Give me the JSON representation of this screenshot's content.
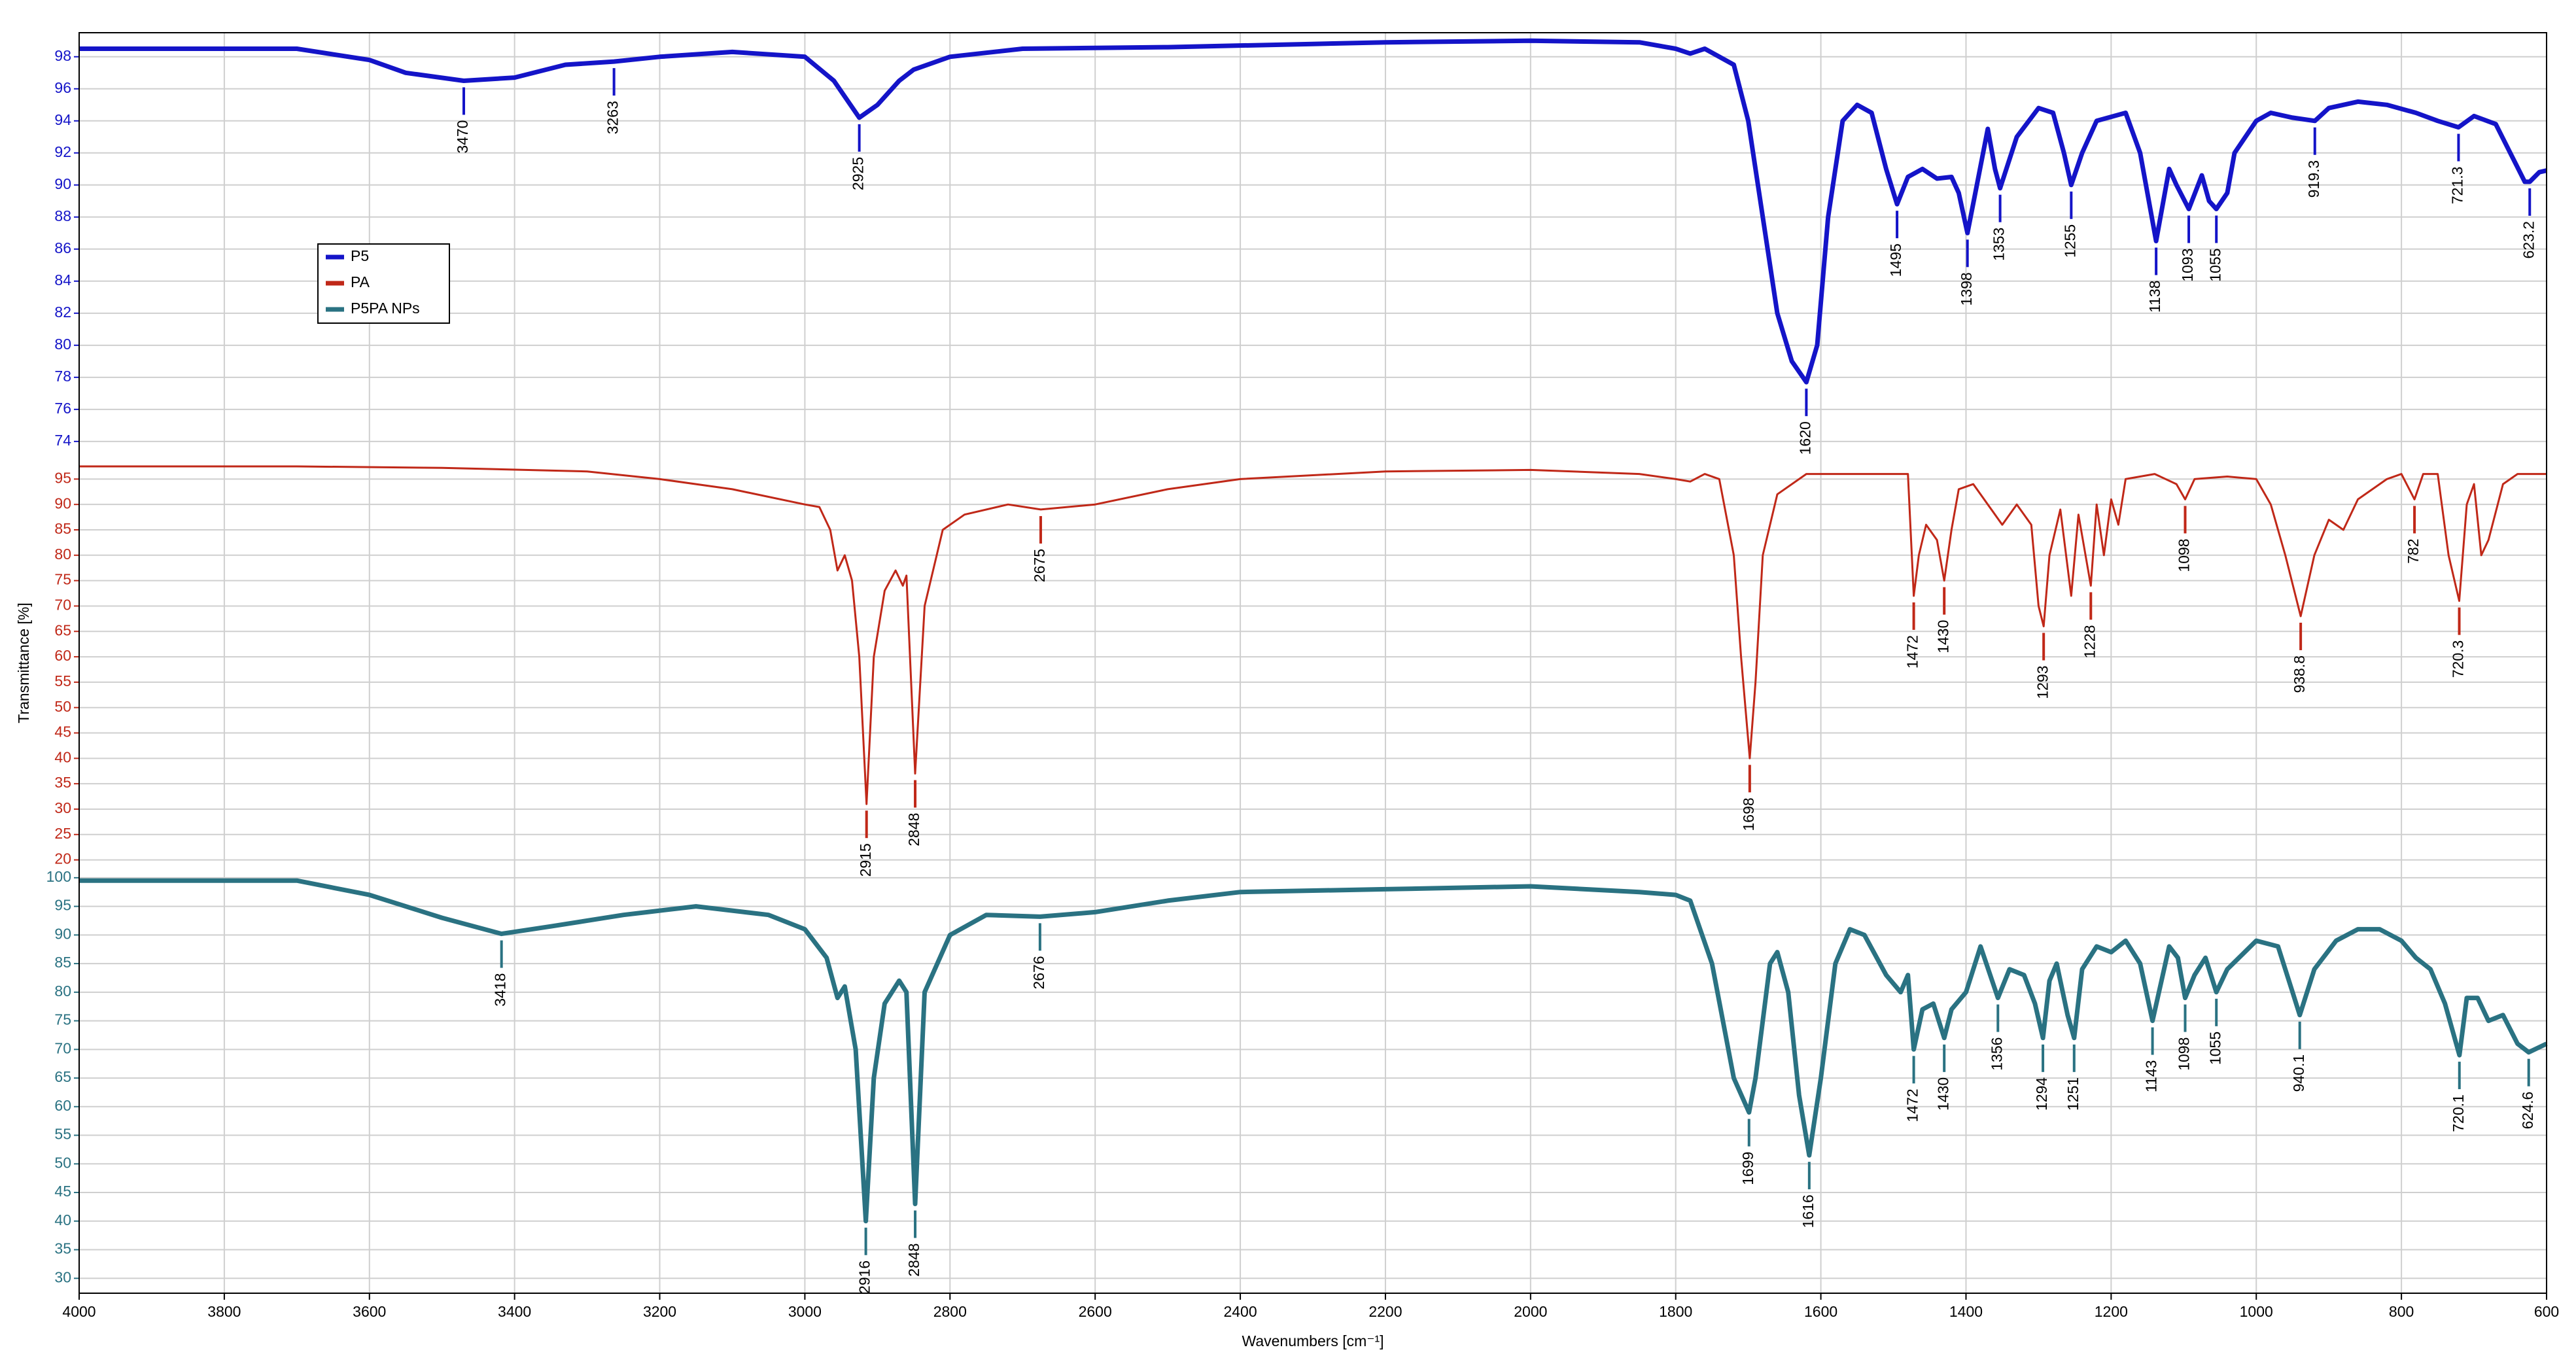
{
  "chart_data": [
    {
      "type": "line",
      "xlim": [
        4000,
        600
      ],
      "ylim": [
        73.3,
        99.5
      ],
      "yticks": [
        74,
        76,
        78,
        80,
        82,
        84,
        86,
        88,
        90,
        92,
        94,
        96,
        98
      ],
      "grid": true,
      "legend": "upper left",
      "x": [
        4000,
        3800,
        3700,
        3600,
        3550,
        3470,
        3400,
        3330,
        3263,
        3200,
        3100,
        3000,
        2960,
        2925,
        2900,
        2870,
        2850,
        2800,
        2700,
        2500,
        2300,
        2200,
        2000,
        1850,
        1800,
        1780,
        1760,
        1720,
        1700,
        1680,
        1660,
        1640,
        1620,
        1605,
        1590,
        1570,
        1550,
        1530,
        1510,
        1495,
        1480,
        1460,
        1440,
        1420,
        1410,
        1398,
        1385,
        1370,
        1360,
        1353,
        1330,
        1300,
        1280,
        1265,
        1255,
        1240,
        1220,
        1180,
        1160,
        1138,
        1120,
        1110,
        1093,
        1075,
        1065,
        1055,
        1040,
        1030,
        1000,
        980,
        950,
        919.3,
        900,
        860,
        820,
        780,
        750,
        721.3,
        700,
        670,
        650,
        630,
        623.2,
        610,
        600
      ],
      "series": [
        {
          "name": "P5",
          "color": "#1414c8",
          "values": [
            98.5,
            98.5,
            98.5,
            97.8,
            97.0,
            96.5,
            96.7,
            97.5,
            97.7,
            98.0,
            98.3,
            98.0,
            96.5,
            94.2,
            95.0,
            96.5,
            97.2,
            98.0,
            98.5,
            98.6,
            98.8,
            98.9,
            99.0,
            98.9,
            98.5,
            98.2,
            98.5,
            97.5,
            94,
            88,
            82,
            79,
            77.7,
            80,
            88,
            94,
            95,
            94.5,
            91,
            88.8,
            90.5,
            91,
            90.4,
            90.5,
            89.5,
            87,
            90,
            93.5,
            91,
            89.8,
            93,
            94.8,
            94.5,
            92,
            90.0,
            92,
            94,
            94.5,
            92,
            86.5,
            91,
            90,
            88.5,
            90.6,
            89,
            88.5,
            89.5,
            92,
            94,
            94.5,
            94.2,
            94.0,
            94.8,
            95.2,
            95.0,
            94.5,
            94,
            93.6,
            94.3,
            93.8,
            92,
            90.2,
            90.2,
            90.8,
            90.9
          ]
        }
      ],
      "peaks": [
        3470,
        3263,
        2925,
        1620,
        1495,
        1398,
        1353,
        1255,
        1138,
        1093,
        1055,
        919.3,
        721.3,
        623.2
      ]
    },
    {
      "type": "line",
      "xlim": [
        4000,
        600
      ],
      "ylim": [
        18.4,
        100.2
      ],
      "yticks": [
        20,
        25,
        30,
        35,
        40,
        45,
        50,
        55,
        60,
        65,
        70,
        75,
        80,
        85,
        90,
        95
      ],
      "grid": true,
      "ylabel": "Transmittance [%]",
      "x": [
        4000,
        3700,
        3500,
        3300,
        3200,
        3100,
        3000,
        2980,
        2965,
        2955,
        2945,
        2935,
        2925,
        2915,
        2905,
        2890,
        2875,
        2865,
        2860,
        2848,
        2835,
        2810,
        2780,
        2720,
        2675,
        2600,
        2500,
        2400,
        2200,
        2000,
        1850,
        1800,
        1780,
        1760,
        1740,
        1720,
        1710,
        1698,
        1690,
        1680,
        1660,
        1620,
        1480,
        1472,
        1465,
        1455,
        1440,
        1430,
        1420,
        1410,
        1390,
        1370,
        1350,
        1330,
        1310,
        1300,
        1293,
        1285,
        1270,
        1255,
        1245,
        1228,
        1220,
        1210,
        1200,
        1190,
        1180,
        1140,
        1110,
        1098,
        1085,
        1040,
        1000,
        980,
        960,
        938.8,
        920,
        900,
        880,
        860,
        820,
        800,
        782,
        770,
        750,
        735,
        720.3,
        710,
        700,
        690,
        680,
        660,
        640,
        600
      ],
      "series": [
        {
          "name": "PA",
          "color": "#c02818",
          "values": [
            97.5,
            97.5,
            97.2,
            96.5,
            95,
            93,
            90,
            89.5,
            85,
            77,
            80,
            75,
            60,
            31,
            60,
            73,
            77,
            74,
            76,
            37,
            70,
            85,
            88,
            90,
            89,
            90,
            93,
            95,
            96.5,
            96.8,
            96,
            95,
            94.5,
            96,
            95,
            80,
            60,
            40,
            55,
            80,
            92,
            96,
            96,
            72,
            80,
            86,
            83,
            75,
            85,
            93,
            94,
            90,
            86,
            90,
            86,
            70,
            66,
            80,
            89,
            72,
            88,
            74,
            90,
            80,
            91,
            86,
            95,
            96,
            94,
            91,
            95,
            95.5,
            95,
            90,
            80,
            68,
            80,
            87,
            85,
            91,
            95,
            96,
            91,
            96,
            96,
            80,
            71,
            90,
            94,
            80,
            83,
            94,
            96,
            96
          ]
        }
      ],
      "peaks": [
        2915,
        2848,
        2675,
        1698,
        1472,
        1430,
        1293,
        1228,
        1098,
        938.8,
        782,
        720.3
      ]
    },
    {
      "type": "line",
      "xlim": [
        4000,
        600
      ],
      "ylim": [
        27.4,
        101.7
      ],
      "yticks": [
        30,
        35,
        40,
        45,
        50,
        55,
        60,
        65,
        70,
        75,
        80,
        85,
        90,
        95,
        100
      ],
      "grid": true,
      "xlabel": "Wavenumbers [cm⁻¹]",
      "xticks": [
        4000,
        3800,
        3600,
        3400,
        3200,
        3000,
        2800,
        2600,
        2400,
        2200,
        2000,
        1800,
        1600,
        1400,
        1200,
        1000,
        800,
        600
      ],
      "x": [
        4000,
        3700,
        3600,
        3500,
        3418,
        3350,
        3250,
        3150,
        3050,
        3000,
        2970,
        2955,
        2945,
        2930,
        2916,
        2905,
        2890,
        2870,
        2860,
        2848,
        2835,
        2800,
        2750,
        2676,
        2600,
        2500,
        2400,
        2200,
        2000,
        1850,
        1800,
        1780,
        1750,
        1720,
        1699,
        1690,
        1670,
        1660,
        1645,
        1630,
        1616,
        1600,
        1580,
        1560,
        1540,
        1510,
        1490,
        1480,
        1472,
        1460,
        1445,
        1430,
        1420,
        1400,
        1380,
        1356,
        1340,
        1320,
        1305,
        1294,
        1285,
        1275,
        1260,
        1251,
        1240,
        1220,
        1200,
        1180,
        1160,
        1143,
        1120,
        1108,
        1098,
        1085,
        1070,
        1055,
        1040,
        1000,
        970,
        950,
        940.1,
        920,
        890,
        860,
        830,
        800,
        780,
        760,
        740,
        720.1,
        710,
        695,
        680,
        660,
        640,
        624.6,
        600
      ],
      "series": [
        {
          "name": "P5PA NPs",
          "color": "#2a7282",
          "values": [
            99.5,
            99.5,
            97,
            93,
            90.2,
            91.5,
            93.5,
            95,
            93.5,
            91,
            86,
            79,
            81,
            70,
            40,
            65,
            78,
            82,
            80,
            43,
            80,
            90,
            93.5,
            93.2,
            94,
            96,
            97.5,
            98,
            98.5,
            97.5,
            97,
            96,
            85,
            65,
            59,
            65,
            85,
            87,
            80,
            62,
            51.5,
            65,
            85,
            91,
            90,
            83,
            80,
            83,
            70,
            77,
            78,
            72,
            77,
            80,
            88,
            79,
            84,
            83,
            78,
            72,
            82,
            85,
            76,
            72,
            84,
            88,
            87,
            89,
            85,
            75,
            88,
            86,
            79,
            83,
            86,
            80,
            84,
            89,
            88,
            80,
            76,
            84,
            89,
            91,
            91,
            89,
            86,
            84,
            78,
            69,
            79,
            79,
            75,
            76,
            71,
            69.5,
            71
          ]
        }
      ],
      "peaks": [
        3418,
        2916,
        2848,
        2676,
        1699,
        1616,
        1472,
        1430,
        1356,
        1294,
        1251,
        1143,
        1098,
        1055,
        940.1,
        720.1,
        624.6
      ]
    }
  ]
}
